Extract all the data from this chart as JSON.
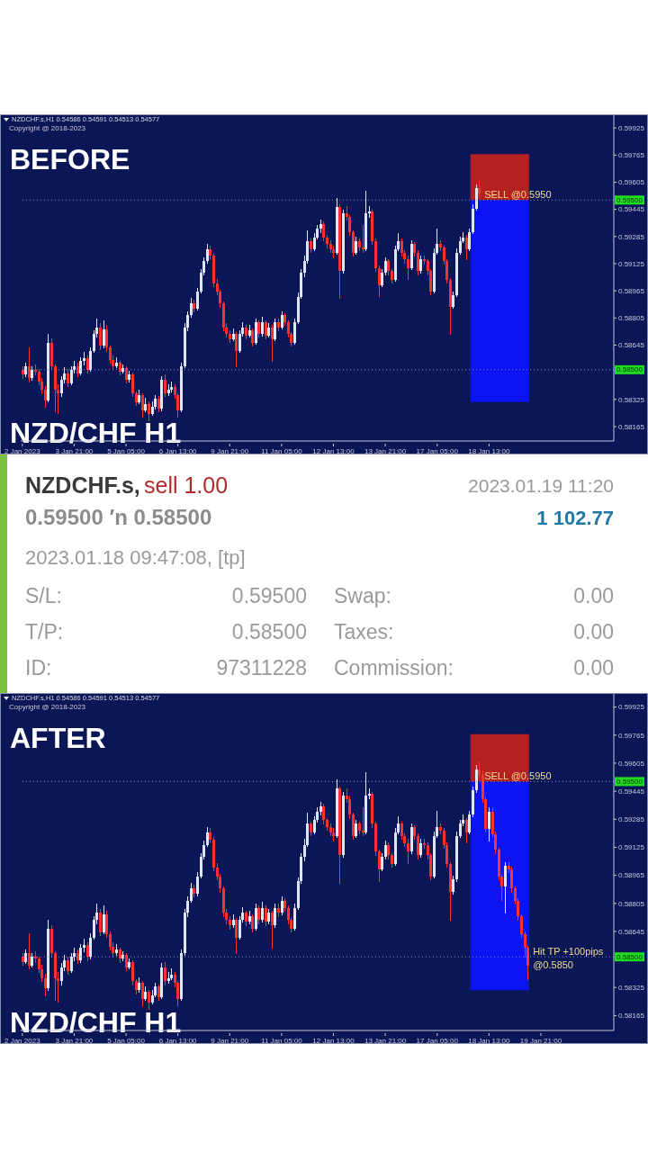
{
  "chart_data": [
    {
      "type": "candlestick",
      "title": "NZDCHF.s,H1 0.54586 0.54591 0.54513 0.54577",
      "subtitle": "Copyright @ 2018-2023",
      "annotations": [
        "BEFORE",
        "NZD/CHF H1",
        {
          "text": "SELL @0.5950",
          "y": 0.595
        }
      ],
      "categories": [
        "2 Jan 2023",
        null,
        null,
        null,
        null,
        null,
        null,
        null,
        null,
        null,
        null,
        null,
        null,
        null,
        null,
        null,
        "3 Jan 21:00",
        null,
        null,
        null,
        null,
        null,
        null,
        null,
        null,
        null,
        null,
        null,
        null,
        null,
        null,
        null,
        "5 Jan 05:00",
        null,
        null,
        null,
        null,
        null,
        null,
        null,
        null,
        null,
        null,
        null,
        null,
        null,
        null,
        null,
        "6 Jan 13:00",
        null,
        null,
        null,
        null,
        null,
        null,
        null,
        null,
        null,
        null,
        null,
        null,
        null,
        null,
        null,
        "9 Jan 21:00",
        null,
        null,
        null,
        null,
        null,
        null,
        null,
        null,
        null,
        null,
        null,
        null,
        null,
        null,
        null,
        "11 Jan 05:00",
        null,
        null,
        null,
        null,
        null,
        null,
        null,
        null,
        null,
        null,
        null,
        null,
        null,
        null,
        null,
        "12 Jan 13:00",
        null,
        null,
        null,
        null,
        null,
        null,
        null,
        null,
        null,
        null,
        null,
        null,
        null,
        null,
        null,
        "13 Jan 21:00",
        null,
        null,
        null,
        null,
        null,
        null,
        null,
        null,
        null,
        null,
        null,
        null,
        null,
        null,
        null,
        "17 Jan 05:00",
        null,
        null,
        null,
        null,
        null,
        null,
        null,
        null,
        null,
        null,
        null,
        null,
        null,
        null,
        null,
        "18 Jan 13:00",
        null,
        null,
        null,
        null,
        null,
        null,
        null,
        null,
        null,
        null,
        null,
        null,
        null,
        null,
        null,
        null,
        null,
        null,
        null,
        null,
        null,
        null,
        null,
        null,
        null,
        null,
        null,
        null,
        null,
        null,
        null,
        null,
        null,
        null,
        null,
        null,
        null,
        null
      ],
      "ohlc": [
        [
          0.585,
          0.5852,
          0.5845,
          0.5847
        ],
        [
          0.5847,
          0.5854,
          0.5846,
          0.5852
        ],
        [
          0.5852,
          0.5863,
          0.5843,
          0.5845
        ],
        [
          0.5845,
          0.5852,
          0.5844,
          0.585
        ],
        [
          0.585,
          0.5853,
          0.5847,
          0.5849
        ],
        [
          0.5849,
          0.585,
          0.5841,
          0.5843
        ],
        [
          0.5843,
          0.5845,
          0.5836,
          0.5838
        ],
        [
          0.5838,
          0.584,
          0.5828,
          0.5832
        ],
        [
          0.5832,
          0.5871,
          0.5831,
          0.5866
        ],
        [
          0.5866,
          0.5868,
          0.585,
          0.5852
        ],
        [
          0.5852,
          0.5853,
          0.5825,
          0.5838
        ],
        [
          0.5838,
          0.5841,
          0.5824,
          0.5836
        ],
        [
          0.5836,
          0.5846,
          0.5834,
          0.5844
        ],
        [
          0.5844,
          0.5851,
          0.5842,
          0.5848
        ],
        [
          0.5848,
          0.585,
          0.584,
          0.5842
        ],
        [
          0.5842,
          0.5852,
          0.5841,
          0.585
        ],
        [
          0.585,
          0.5855,
          0.5848,
          0.5852
        ],
        [
          0.5852,
          0.5854,
          0.5846,
          0.5848
        ],
        [
          0.5848,
          0.5857,
          0.5847,
          0.5855
        ],
        [
          0.5855,
          0.586,
          0.5853,
          0.5857
        ],
        [
          0.5857,
          0.5858,
          0.5848,
          0.585
        ],
        [
          0.585,
          0.5863,
          0.5849,
          0.5861
        ],
        [
          0.5861,
          0.5873,
          0.586,
          0.5871
        ],
        [
          0.5871,
          0.588,
          0.5869,
          0.5875
        ],
        [
          0.5875,
          0.5877,
          0.5862,
          0.5864
        ],
        [
          0.5864,
          0.5879,
          0.5863,
          0.5874
        ],
        [
          0.5874,
          0.5876,
          0.5861,
          0.5863
        ],
        [
          0.5863,
          0.5864,
          0.5854,
          0.5856
        ],
        [
          0.5856,
          0.5858,
          0.585,
          0.5852
        ],
        [
          0.5852,
          0.5857,
          0.5851,
          0.5854
        ],
        [
          0.5854,
          0.5855,
          0.5847,
          0.5849
        ],
        [
          0.5849,
          0.5853,
          0.5848,
          0.5851
        ],
        [
          0.5851,
          0.5852,
          0.5842,
          0.5844
        ],
        [
          0.5844,
          0.5849,
          0.5843,
          0.5847
        ],
        [
          0.5847,
          0.5848,
          0.5834,
          0.5836
        ],
        [
          0.5836,
          0.5837,
          0.5829,
          0.5831
        ],
        [
          0.5831,
          0.5838,
          0.583,
          0.5835
        ],
        [
          0.5835,
          0.5836,
          0.5822,
          0.5826
        ],
        [
          0.5826,
          0.5833,
          0.5825,
          0.583
        ],
        [
          0.583,
          0.5831,
          0.582,
          0.5824
        ],
        [
          0.5824,
          0.5831,
          0.5823,
          0.5828
        ],
        [
          0.5828,
          0.5835,
          0.5827,
          0.5833
        ],
        [
          0.5833,
          0.5834,
          0.5825,
          0.5827
        ],
        [
          0.5827,
          0.5846,
          0.5826,
          0.5844
        ],
        [
          0.5844,
          0.5847,
          0.5834,
          0.5836
        ],
        [
          0.5836,
          0.5841,
          0.5835,
          0.5838
        ],
        [
          0.5838,
          0.5843,
          0.5837,
          0.584
        ],
        [
          0.584,
          0.5841,
          0.5833,
          0.5835
        ],
        [
          0.5835,
          0.5836,
          0.5822,
          0.5826
        ],
        [
          0.5826,
          0.5854,
          0.5825,
          0.5852
        ],
        [
          0.5852,
          0.5877,
          0.5851,
          0.5875
        ],
        [
          0.5875,
          0.5884,
          0.5873,
          0.5882
        ],
        [
          0.5882,
          0.5892,
          0.5881,
          0.5889
        ],
        [
          0.5889,
          0.5891,
          0.5884,
          0.5886
        ],
        [
          0.5886,
          0.5898,
          0.5885,
          0.5896
        ],
        [
          0.5896,
          0.5909,
          0.5895,
          0.5907
        ],
        [
          0.5907,
          0.5916,
          0.5906,
          0.5914
        ],
        [
          0.5914,
          0.5924,
          0.5913,
          0.5921
        ],
        [
          0.5921,
          0.5923,
          0.5915,
          0.5917
        ],
        [
          0.5917,
          0.5918,
          0.5899,
          0.5901
        ],
        [
          0.5901,
          0.5903,
          0.5894,
          0.5896
        ],
        [
          0.5896,
          0.5897,
          0.5887,
          0.5889
        ],
        [
          0.5889,
          0.589,
          0.5873,
          0.5875
        ],
        [
          0.5875,
          0.5877,
          0.5869,
          0.5871
        ],
        [
          0.5871,
          0.5873,
          0.5866,
          0.5868
        ],
        [
          0.5868,
          0.5874,
          0.5867,
          0.5871
        ],
        [
          0.5871,
          0.5872,
          0.5852,
          0.5861
        ],
        [
          0.5861,
          0.5873,
          0.586,
          0.5871
        ],
        [
          0.5871,
          0.5878,
          0.587,
          0.5875
        ],
        [
          0.5875,
          0.5876,
          0.5868,
          0.587
        ],
        [
          0.587,
          0.5876,
          0.5869,
          0.5873
        ],
        [
          0.5873,
          0.5874,
          0.5864,
          0.5866
        ],
        [
          0.5866,
          0.588,
          0.5865,
          0.5878
        ],
        [
          0.5878,
          0.5879,
          0.5869,
          0.5871
        ],
        [
          0.5871,
          0.5881,
          0.587,
          0.5878
        ],
        [
          0.5878,
          0.5879,
          0.5868,
          0.587
        ],
        [
          0.587,
          0.5877,
          0.5869,
          0.5875
        ],
        [
          0.5875,
          0.5876,
          0.5855,
          0.5868
        ],
        [
          0.5868,
          0.588,
          0.5867,
          0.5878
        ],
        [
          0.5878,
          0.588,
          0.5873,
          0.5875
        ],
        [
          0.5875,
          0.5884,
          0.5874,
          0.5882
        ],
        [
          0.5882,
          0.5883,
          0.5876,
          0.5878
        ],
        [
          0.5878,
          0.5879,
          0.5869,
          0.5871
        ],
        [
          0.5871,
          0.5872,
          0.5864,
          0.5866
        ],
        [
          0.5866,
          0.588,
          0.5865,
          0.5878
        ],
        [
          0.5878,
          0.5895,
          0.5877,
          0.5893
        ],
        [
          0.5893,
          0.5909,
          0.5892,
          0.5907
        ],
        [
          0.5907,
          0.5917,
          0.5905,
          0.5914
        ],
        [
          0.5914,
          0.5932,
          0.5913,
          0.5926
        ],
        [
          0.5926,
          0.5927,
          0.5919,
          0.5921
        ],
        [
          0.5921,
          0.593,
          0.592,
          0.5928
        ],
        [
          0.5928,
          0.5935,
          0.5927,
          0.5933
        ],
        [
          0.5933,
          0.5938,
          0.5931,
          0.5936
        ],
        [
          0.5936,
          0.5937,
          0.5926,
          0.5928
        ],
        [
          0.5928,
          0.5929,
          0.5922,
          0.5924
        ],
        [
          0.5924,
          0.5926,
          0.5919,
          0.5921
        ],
        [
          0.5921,
          0.5923,
          0.5916,
          0.5919
        ],
        [
          0.5919,
          0.5951,
          0.5918,
          0.5946
        ],
        [
          0.5946,
          0.5947,
          0.5892,
          0.5908
        ],
        [
          0.5908,
          0.5944,
          0.5907,
          0.5942
        ],
        [
          0.5942,
          0.5946,
          0.5938,
          0.594
        ],
        [
          0.594,
          0.5941,
          0.5929,
          0.5931
        ],
        [
          0.5931,
          0.5932,
          0.5917,
          0.5919
        ],
        [
          0.5919,
          0.5928,
          0.5918,
          0.5926
        ],
        [
          0.5926,
          0.5927,
          0.592,
          0.5922
        ],
        [
          0.5922,
          0.5935,
          0.5919,
          0.5921
        ],
        [
          0.5921,
          0.5955,
          0.592,
          0.5942
        ],
        [
          0.5942,
          0.5946,
          0.594,
          0.5943
        ],
        [
          0.5943,
          0.5944,
          0.5924,
          0.5926
        ],
        [
          0.5926,
          0.5927,
          0.5908,
          0.591
        ],
        [
          0.591,
          0.5911,
          0.5893,
          0.59
        ],
        [
          0.59,
          0.5909,
          0.5899,
          0.5907
        ],
        [
          0.5907,
          0.5916,
          0.5906,
          0.5914
        ],
        [
          0.5914,
          0.5915,
          0.5906,
          0.5908
        ],
        [
          0.5908,
          0.5909,
          0.5901,
          0.5903
        ],
        [
          0.5903,
          0.5923,
          0.5902,
          0.5921
        ],
        [
          0.5921,
          0.593,
          0.592,
          0.5926
        ],
        [
          0.5926,
          0.5927,
          0.5917,
          0.5919
        ],
        [
          0.5919,
          0.592,
          0.5913,
          0.5915
        ],
        [
          0.5915,
          0.5917,
          0.5903,
          0.591
        ],
        [
          0.591,
          0.5926,
          0.5909,
          0.5924
        ],
        [
          0.5924,
          0.5925,
          0.5917,
          0.5919
        ],
        [
          0.5919,
          0.592,
          0.5906,
          0.5908
        ],
        [
          0.5908,
          0.5917,
          0.5907,
          0.5915
        ],
        [
          0.5915,
          0.5917,
          0.5912,
          0.5914
        ],
        [
          0.5914,
          0.5915,
          0.5906,
          0.5908
        ],
        [
          0.5908,
          0.5909,
          0.5894,
          0.5896
        ],
        [
          0.5896,
          0.5921,
          0.5895,
          0.5919
        ],
        [
          0.5919,
          0.5933,
          0.5918,
          0.5924
        ],
        [
          0.5924,
          0.5926,
          0.592,
          0.5922
        ],
        [
          0.5922,
          0.5923,
          0.5912,
          0.5914
        ],
        [
          0.5914,
          0.5915,
          0.5901,
          0.5903
        ],
        [
          0.5903,
          0.5904,
          0.5871,
          0.5887
        ],
        [
          0.5887,
          0.5896,
          0.5886,
          0.5894
        ],
        [
          0.5894,
          0.5921,
          0.5893,
          0.5919
        ],
        [
          0.5919,
          0.5928,
          0.5918,
          0.5926
        ],
        [
          0.5926,
          0.5931,
          0.5925,
          0.5928
        ],
        [
          0.5928,
          0.5929,
          0.5915,
          0.5921
        ],
        [
          0.5921,
          0.5933,
          0.592,
          0.5931
        ],
        [
          0.5931,
          0.5947,
          0.593,
          0.5945
        ],
        [
          0.5945,
          0.5959,
          0.5944,
          0.5957
        ],
        [
          0.5957,
          0.5961,
          0.5952,
          0.5954
        ],
        null,
        null,
        null,
        null,
        null,
        null,
        null,
        null,
        null,
        null,
        null,
        null,
        null,
        null,
        null,
        null,
        null,
        null,
        null,
        null,
        null,
        null,
        null,
        null,
        null,
        null,
        null,
        null,
        null,
        null,
        null,
        null,
        null,
        null,
        null,
        null,
        null,
        null,
        null,
        null,
        null
      ],
      "ylim": [
        0.5808,
        0.6
      ],
      "yticks": [
        0.59925,
        0.59765,
        0.59605,
        0.59445,
        0.59285,
        0.59125,
        0.58965,
        0.58805,
        0.58645,
        0.58325,
        0.58165
      ],
      "ref_lines": [
        {
          "axis": "y",
          "value": 0.595,
          "label": "0.59500",
          "line_style": "dotted"
        },
        {
          "axis": "y",
          "value": 0.585,
          "label": "0.58500",
          "line_style": "dotted"
        }
      ],
      "bands": [
        {
          "axis": "y",
          "from": 0.595,
          "to": 0.5977,
          "color": "#b52020"
        },
        {
          "axis": "y",
          "from": 0.5831,
          "to": 0.595,
          "color": "#0a14f2"
        }
      ]
    },
    {
      "type": "other",
      "annotations": [
        "NZDCHF.s,",
        "sell 1.00",
        "2023.01.19 11:20",
        "0.59500 ′n 0.58500",
        "1 102.77",
        "2023.01.18 09:47:08, [tp]",
        "S/L:",
        "0.59500",
        "Swap:",
        "0.00",
        "T/P:",
        "0.58500",
        "Taxes:",
        "0.00",
        "ID:",
        "97311228",
        "Commission:",
        "0.00"
      ]
    },
    {
      "type": "candlestick",
      "title": "NZDCHF.s,H1 0.54586 0.54591 0.54513 0.54577",
      "subtitle": "Copyright @ 2018-2023",
      "annotations": [
        "AFTER",
        "NZD/CHF H1",
        {
          "text": "SELL @0.5950",
          "y": 0.595
        },
        {
          "text": "Hit TP +100pips\n@0.5850",
          "y": 0.585
        }
      ],
      "categories": [
        "2 Jan 2023",
        null,
        null,
        null,
        null,
        null,
        null,
        null,
        null,
        null,
        null,
        null,
        null,
        null,
        null,
        null,
        "3 Jan 21:00",
        null,
        null,
        null,
        null,
        null,
        null,
        null,
        null,
        null,
        null,
        null,
        null,
        null,
        null,
        null,
        "5 Jan 05:00",
        null,
        null,
        null,
        null,
        null,
        null,
        null,
        null,
        null,
        null,
        null,
        null,
        null,
        null,
        null,
        "6 Jan 13:00",
        null,
        null,
        null,
        null,
        null,
        null,
        null,
        null,
        null,
        null,
        null,
        null,
        null,
        null,
        null,
        "9 Jan 21:00",
        null,
        null,
        null,
        null,
        null,
        null,
        null,
        null,
        null,
        null,
        null,
        null,
        null,
        null,
        null,
        "11 Jan 05:00",
        null,
        null,
        null,
        null,
        null,
        null,
        null,
        null,
        null,
        null,
        null,
        null,
        null,
        null,
        null,
        "12 Jan 13:00",
        null,
        null,
        null,
        null,
        null,
        null,
        null,
        null,
        null,
        null,
        null,
        null,
        null,
        null,
        null,
        "13 Jan 21:00",
        null,
        null,
        null,
        null,
        null,
        null,
        null,
        null,
        null,
        null,
        null,
        null,
        null,
        null,
        null,
        "17 Jan 05:00",
        null,
        null,
        null,
        null,
        null,
        null,
        null,
        null,
        null,
        null,
        null,
        null,
        null,
        null,
        null,
        "18 Jan 13:00",
        null,
        null,
        null,
        null,
        null,
        null,
        null,
        null,
        null,
        null,
        null,
        null,
        null,
        null,
        null,
        "19 Jan 21:00",
        null,
        null,
        null,
        null,
        null,
        null,
        null,
        null,
        null,
        null,
        null,
        null,
        null,
        null,
        null,
        null,
        null,
        null,
        null,
        null,
        null,
        null
      ],
      "ohlc": [
        [
          0.585,
          0.5852,
          0.5845,
          0.5847
        ],
        [
          0.5847,
          0.5854,
          0.5846,
          0.5852
        ],
        [
          0.5852,
          0.5863,
          0.5843,
          0.5845
        ],
        [
          0.5845,
          0.5852,
          0.5844,
          0.585
        ],
        [
          0.585,
          0.5853,
          0.5847,
          0.5849
        ],
        [
          0.5849,
          0.585,
          0.5841,
          0.5843
        ],
        [
          0.5843,
          0.5845,
          0.5836,
          0.5838
        ],
        [
          0.5838,
          0.584,
          0.5828,
          0.5832
        ],
        [
          0.5832,
          0.5871,
          0.5831,
          0.5866
        ],
        [
          0.5866,
          0.5868,
          0.585,
          0.5852
        ],
        [
          0.5852,
          0.5853,
          0.5825,
          0.5838
        ],
        [
          0.5838,
          0.5841,
          0.5824,
          0.5836
        ],
        [
          0.5836,
          0.5846,
          0.5834,
          0.5844
        ],
        [
          0.5844,
          0.5851,
          0.5842,
          0.5848
        ],
        [
          0.5848,
          0.585,
          0.584,
          0.5842
        ],
        [
          0.5842,
          0.5852,
          0.5841,
          0.585
        ],
        [
          0.585,
          0.5855,
          0.5848,
          0.5852
        ],
        [
          0.5852,
          0.5854,
          0.5846,
          0.5848
        ],
        [
          0.5848,
          0.5857,
          0.5847,
          0.5855
        ],
        [
          0.5855,
          0.586,
          0.5853,
          0.5857
        ],
        [
          0.5857,
          0.5858,
          0.5848,
          0.585
        ],
        [
          0.585,
          0.5863,
          0.5849,
          0.5861
        ],
        [
          0.5861,
          0.5873,
          0.586,
          0.5871
        ],
        [
          0.5871,
          0.588,
          0.5869,
          0.5875
        ],
        [
          0.5875,
          0.5877,
          0.5862,
          0.5864
        ],
        [
          0.5864,
          0.5879,
          0.5863,
          0.5874
        ],
        [
          0.5874,
          0.5876,
          0.5861,
          0.5863
        ],
        [
          0.5863,
          0.5864,
          0.5854,
          0.5856
        ],
        [
          0.5856,
          0.5858,
          0.585,
          0.5852
        ],
        [
          0.5852,
          0.5857,
          0.5851,
          0.5854
        ],
        [
          0.5854,
          0.5855,
          0.5847,
          0.5849
        ],
        [
          0.5849,
          0.5853,
          0.5848,
          0.5851
        ],
        [
          0.5851,
          0.5852,
          0.5842,
          0.5844
        ],
        [
          0.5844,
          0.5849,
          0.5843,
          0.5847
        ],
        [
          0.5847,
          0.5848,
          0.5834,
          0.5836
        ],
        [
          0.5836,
          0.5837,
          0.5829,
          0.5831
        ],
        [
          0.5831,
          0.5838,
          0.583,
          0.5835
        ],
        [
          0.5835,
          0.5836,
          0.5822,
          0.5826
        ],
        [
          0.5826,
          0.5833,
          0.5825,
          0.583
        ],
        [
          0.583,
          0.5831,
          0.582,
          0.5824
        ],
        [
          0.5824,
          0.5831,
          0.5823,
          0.5828
        ],
        [
          0.5828,
          0.5835,
          0.5827,
          0.5833
        ],
        [
          0.5833,
          0.5834,
          0.5825,
          0.5827
        ],
        [
          0.5827,
          0.5846,
          0.5826,
          0.5844
        ],
        [
          0.5844,
          0.5847,
          0.5834,
          0.5836
        ],
        [
          0.5836,
          0.5841,
          0.5835,
          0.5838
        ],
        [
          0.5838,
          0.5843,
          0.5837,
          0.584
        ],
        [
          0.584,
          0.5841,
          0.5833,
          0.5835
        ],
        [
          0.5835,
          0.5836,
          0.5822,
          0.5826
        ],
        [
          0.5826,
          0.5854,
          0.5825,
          0.5852
        ],
        [
          0.5852,
          0.5877,
          0.5851,
          0.5875
        ],
        [
          0.5875,
          0.5884,
          0.5873,
          0.5882
        ],
        [
          0.5882,
          0.5892,
          0.5881,
          0.5889
        ],
        [
          0.5889,
          0.5891,
          0.5884,
          0.5886
        ],
        [
          0.5886,
          0.5898,
          0.5885,
          0.5896
        ],
        [
          0.5896,
          0.5909,
          0.5895,
          0.5907
        ],
        [
          0.5907,
          0.5916,
          0.5906,
          0.5914
        ],
        [
          0.5914,
          0.5924,
          0.5913,
          0.5921
        ],
        [
          0.5921,
          0.5923,
          0.5915,
          0.5917
        ],
        [
          0.5917,
          0.5918,
          0.5899,
          0.5901
        ],
        [
          0.5901,
          0.5903,
          0.5894,
          0.5896
        ],
        [
          0.5896,
          0.5897,
          0.5887,
          0.5889
        ],
        [
          0.5889,
          0.589,
          0.5873,
          0.5875
        ],
        [
          0.5875,
          0.5877,
          0.5869,
          0.5871
        ],
        [
          0.5871,
          0.5873,
          0.5866,
          0.5868
        ],
        [
          0.5868,
          0.5874,
          0.5867,
          0.5871
        ],
        [
          0.5871,
          0.5872,
          0.5852,
          0.5861
        ],
        [
          0.5861,
          0.5873,
          0.586,
          0.5871
        ],
        [
          0.5871,
          0.5878,
          0.587,
          0.5875
        ],
        [
          0.5875,
          0.5876,
          0.5868,
          0.587
        ],
        [
          0.587,
          0.5876,
          0.5869,
          0.5873
        ],
        [
          0.5873,
          0.5874,
          0.5864,
          0.5866
        ],
        [
          0.5866,
          0.588,
          0.5865,
          0.5878
        ],
        [
          0.5878,
          0.5879,
          0.5869,
          0.5871
        ],
        [
          0.5871,
          0.5881,
          0.587,
          0.5878
        ],
        [
          0.5878,
          0.5879,
          0.5868,
          0.587
        ],
        [
          0.587,
          0.5877,
          0.5869,
          0.5875
        ],
        [
          0.5875,
          0.5876,
          0.5855,
          0.5868
        ],
        [
          0.5868,
          0.588,
          0.5867,
          0.5878
        ],
        [
          0.5878,
          0.588,
          0.5873,
          0.5875
        ],
        [
          0.5875,
          0.5884,
          0.5874,
          0.5882
        ],
        [
          0.5882,
          0.5883,
          0.5876,
          0.5878
        ],
        [
          0.5878,
          0.5879,
          0.5869,
          0.5871
        ],
        [
          0.5871,
          0.5872,
          0.5864,
          0.5866
        ],
        [
          0.5866,
          0.588,
          0.5865,
          0.5878
        ],
        [
          0.5878,
          0.5895,
          0.5877,
          0.5893
        ],
        [
          0.5893,
          0.5909,
          0.5892,
          0.5907
        ],
        [
          0.5907,
          0.5917,
          0.5905,
          0.5914
        ],
        [
          0.5914,
          0.5932,
          0.5913,
          0.5926
        ],
        [
          0.5926,
          0.5927,
          0.5919,
          0.5921
        ],
        [
          0.5921,
          0.593,
          0.592,
          0.5928
        ],
        [
          0.5928,
          0.5935,
          0.5927,
          0.5933
        ],
        [
          0.5933,
          0.5938,
          0.5931,
          0.5936
        ],
        [
          0.5936,
          0.5937,
          0.5926,
          0.5928
        ],
        [
          0.5928,
          0.5929,
          0.5922,
          0.5924
        ],
        [
          0.5924,
          0.5926,
          0.5919,
          0.5921
        ],
        [
          0.5921,
          0.5923,
          0.5916,
          0.5919
        ],
        [
          0.5919,
          0.5951,
          0.5918,
          0.5946
        ],
        [
          0.5946,
          0.5947,
          0.5892,
          0.5908
        ],
        [
          0.5908,
          0.5944,
          0.5907,
          0.5942
        ],
        [
          0.5942,
          0.5946,
          0.5938,
          0.594
        ],
        [
          0.594,
          0.5941,
          0.5929,
          0.5931
        ],
        [
          0.5931,
          0.5932,
          0.5917,
          0.5919
        ],
        [
          0.5919,
          0.5928,
          0.5918,
          0.5926
        ],
        [
          0.5926,
          0.5927,
          0.592,
          0.5922
        ],
        [
          0.5922,
          0.5935,
          0.5919,
          0.5921
        ],
        [
          0.5921,
          0.5955,
          0.592,
          0.5942
        ],
        [
          0.5942,
          0.5946,
          0.594,
          0.5943
        ],
        [
          0.5943,
          0.5944,
          0.5924,
          0.5926
        ],
        [
          0.5926,
          0.5927,
          0.5908,
          0.591
        ],
        [
          0.591,
          0.5911,
          0.5893,
          0.59
        ],
        [
          0.59,
          0.5909,
          0.5899,
          0.5907
        ],
        [
          0.5907,
          0.5916,
          0.5906,
          0.5914
        ],
        [
          0.5914,
          0.5915,
          0.5906,
          0.5908
        ],
        [
          0.5908,
          0.5909,
          0.5901,
          0.5903
        ],
        [
          0.5903,
          0.5923,
          0.5902,
          0.5921
        ],
        [
          0.5921,
          0.593,
          0.592,
          0.5926
        ],
        [
          0.5926,
          0.5927,
          0.5917,
          0.5919
        ],
        [
          0.5919,
          0.592,
          0.5913,
          0.5915
        ],
        [
          0.5915,
          0.5917,
          0.5903,
          0.591
        ],
        [
          0.591,
          0.5926,
          0.5909,
          0.5924
        ],
        [
          0.5924,
          0.5925,
          0.5917,
          0.5919
        ],
        [
          0.5919,
          0.592,
          0.5906,
          0.5908
        ],
        [
          0.5908,
          0.5917,
          0.5907,
          0.5915
        ],
        [
          0.5915,
          0.5917,
          0.5912,
          0.5914
        ],
        [
          0.5914,
          0.5915,
          0.5906,
          0.5908
        ],
        [
          0.5908,
          0.5909,
          0.5894,
          0.5896
        ],
        [
          0.5896,
          0.5921,
          0.5895,
          0.5919
        ],
        [
          0.5919,
          0.5933,
          0.5918,
          0.5924
        ],
        [
          0.5924,
          0.5926,
          0.592,
          0.5922
        ],
        [
          0.5922,
          0.5923,
          0.5912,
          0.5914
        ],
        [
          0.5914,
          0.5915,
          0.5901,
          0.5903
        ],
        [
          0.5903,
          0.5904,
          0.5871,
          0.5887
        ],
        [
          0.5887,
          0.5896,
          0.5886,
          0.5894
        ],
        [
          0.5894,
          0.5921,
          0.5893,
          0.5919
        ],
        [
          0.5919,
          0.5928,
          0.5918,
          0.5926
        ],
        [
          0.5926,
          0.5931,
          0.5925,
          0.5928
        ],
        [
          0.5928,
          0.5929,
          0.5915,
          0.5921
        ],
        [
          0.5921,
          0.5933,
          0.592,
          0.5931
        ],
        [
          0.5931,
          0.5947,
          0.593,
          0.5945
        ],
        [
          0.5945,
          0.5959,
          0.5944,
          0.5957
        ],
        [
          0.5957,
          0.5961,
          0.5952,
          0.5954
        ],
        [
          0.5954,
          0.5956,
          0.5938,
          0.594
        ],
        [
          0.594,
          0.5941,
          0.5921,
          0.5923
        ],
        [
          0.5923,
          0.5935,
          0.5916,
          0.5933
        ],
        [
          0.5933,
          0.5935,
          0.5918,
          0.592
        ],
        [
          0.592,
          0.5921,
          0.5909,
          0.5911
        ],
        [
          0.5911,
          0.5912,
          0.5894,
          0.5896
        ],
        [
          0.5896,
          0.5897,
          0.5882,
          0.589
        ],
        [
          0.589,
          0.5904,
          0.5875,
          0.5902
        ],
        [
          0.5902,
          0.5904,
          0.5898,
          0.59
        ],
        [
          0.59,
          0.5901,
          0.5887,
          0.5889
        ],
        [
          0.5889,
          0.589,
          0.588,
          0.5882
        ],
        [
          0.5882,
          0.5883,
          0.5871,
          0.5873
        ],
        [
          0.5873,
          0.5874,
          0.5861,
          0.5863
        ],
        [
          0.5863,
          0.5864,
          0.585,
          0.5855
        ],
        [
          0.5855,
          0.5856,
          0.5837,
          0.5845
        ],
        null,
        null,
        null,
        null,
        null,
        null,
        null,
        null,
        null,
        null,
        null,
        null,
        null,
        null,
        null,
        null,
        null,
        null,
        null,
        null,
        null,
        null,
        null,
        null,
        null,
        null
      ],
      "ylim": [
        0.5808,
        0.6
      ],
      "yticks": [
        0.59925,
        0.59765,
        0.59605,
        0.59445,
        0.59285,
        0.59125,
        0.58965,
        0.58805,
        0.58645,
        0.58325,
        0.58165
      ],
      "ref_lines": [
        {
          "axis": "y",
          "value": 0.595,
          "label": "0.59500",
          "line_style": "dotted"
        },
        {
          "axis": "y",
          "value": 0.585,
          "label": "0.58500",
          "line_style": "dotted"
        }
      ],
      "bands": [
        {
          "axis": "y",
          "from": 0.595,
          "to": 0.5977,
          "color": "#b52020"
        },
        {
          "axis": "y",
          "from": 0.5831,
          "to": 0.595,
          "color": "#0a14f2"
        }
      ]
    }
  ]
}
